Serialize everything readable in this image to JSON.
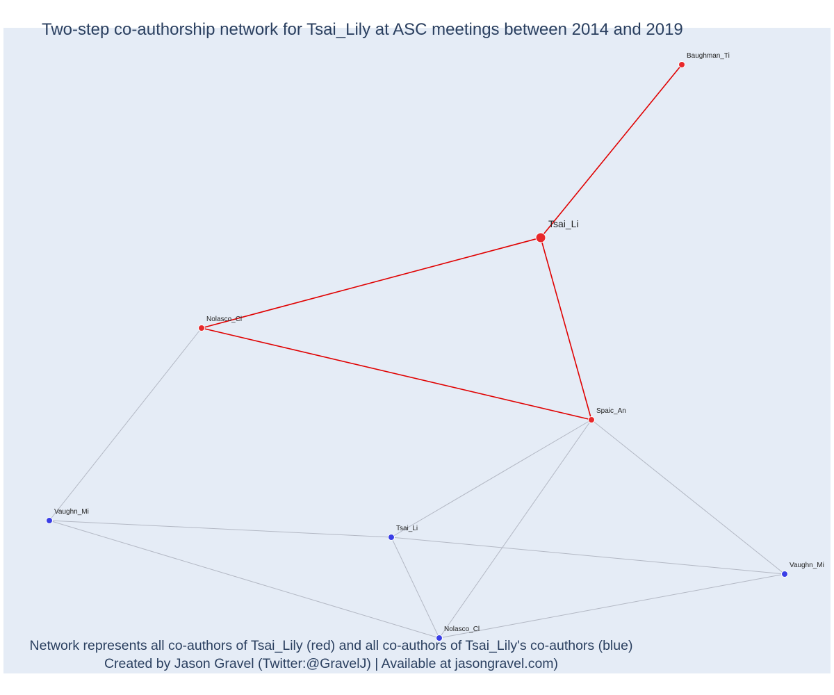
{
  "title": "Two-step co-authorship network for Tsai_Lily at ASC meetings between 2014 and 2019",
  "caption": {
    "line1": "Network represents all co-authors of Tsai_Lily (red) and all co-authors of Tsai_Lily's co-authors (blue)",
    "line2": "Created by Jason Gravel (Twitter:@GravelJ) | Available at jasongravel.com)"
  },
  "colors": {
    "background": "#e5ecf6",
    "red_node": "#e8282b",
    "blue_node": "#3a3ee6",
    "red_edge": "#e00000",
    "gray_edge": "#b3b8c4",
    "text": "#2a3f5f"
  },
  "nodes": [
    {
      "id": "tsai_main",
      "label": "Tsai_Li",
      "group": "red",
      "focal": true
    },
    {
      "id": "baughman",
      "label": "Baughman_Ti",
      "group": "red"
    },
    {
      "id": "nolasco_red",
      "label": "Nolasco_Cl",
      "group": "red"
    },
    {
      "id": "spaic",
      "label": "Spaic_An",
      "group": "red"
    },
    {
      "id": "vaughn_left",
      "label": "Vaughn_Mi",
      "group": "blue"
    },
    {
      "id": "tsai_blue",
      "label": "Tsai_Li",
      "group": "blue"
    },
    {
      "id": "vaughn_right",
      "label": "Vaughn_Mi",
      "group": "blue"
    },
    {
      "id": "nolasco_blue",
      "label": "Nolasco_Cl",
      "group": "blue"
    }
  ],
  "edges": [
    {
      "source": "tsai_main",
      "target": "baughman",
      "type": "red"
    },
    {
      "source": "tsai_main",
      "target": "nolasco_red",
      "type": "red"
    },
    {
      "source": "tsai_main",
      "target": "spaic",
      "type": "red"
    },
    {
      "source": "nolasco_red",
      "target": "spaic",
      "type": "red"
    },
    {
      "source": "nolasco_red",
      "target": "vaughn_left",
      "type": "gray"
    },
    {
      "source": "spaic",
      "target": "tsai_blue",
      "type": "gray"
    },
    {
      "source": "spaic",
      "target": "nolasco_blue",
      "type": "gray"
    },
    {
      "source": "spaic",
      "target": "vaughn_right",
      "type": "gray"
    },
    {
      "source": "vaughn_left",
      "target": "tsai_blue",
      "type": "gray"
    },
    {
      "source": "vaughn_left",
      "target": "nolasco_blue",
      "type": "gray"
    },
    {
      "source": "tsai_blue",
      "target": "vaughn_right",
      "type": "gray"
    },
    {
      "source": "tsai_blue",
      "target": "nolasco_blue",
      "type": "gray"
    },
    {
      "source": "nolasco_blue",
      "target": "vaughn_right",
      "type": "gray"
    }
  ]
}
